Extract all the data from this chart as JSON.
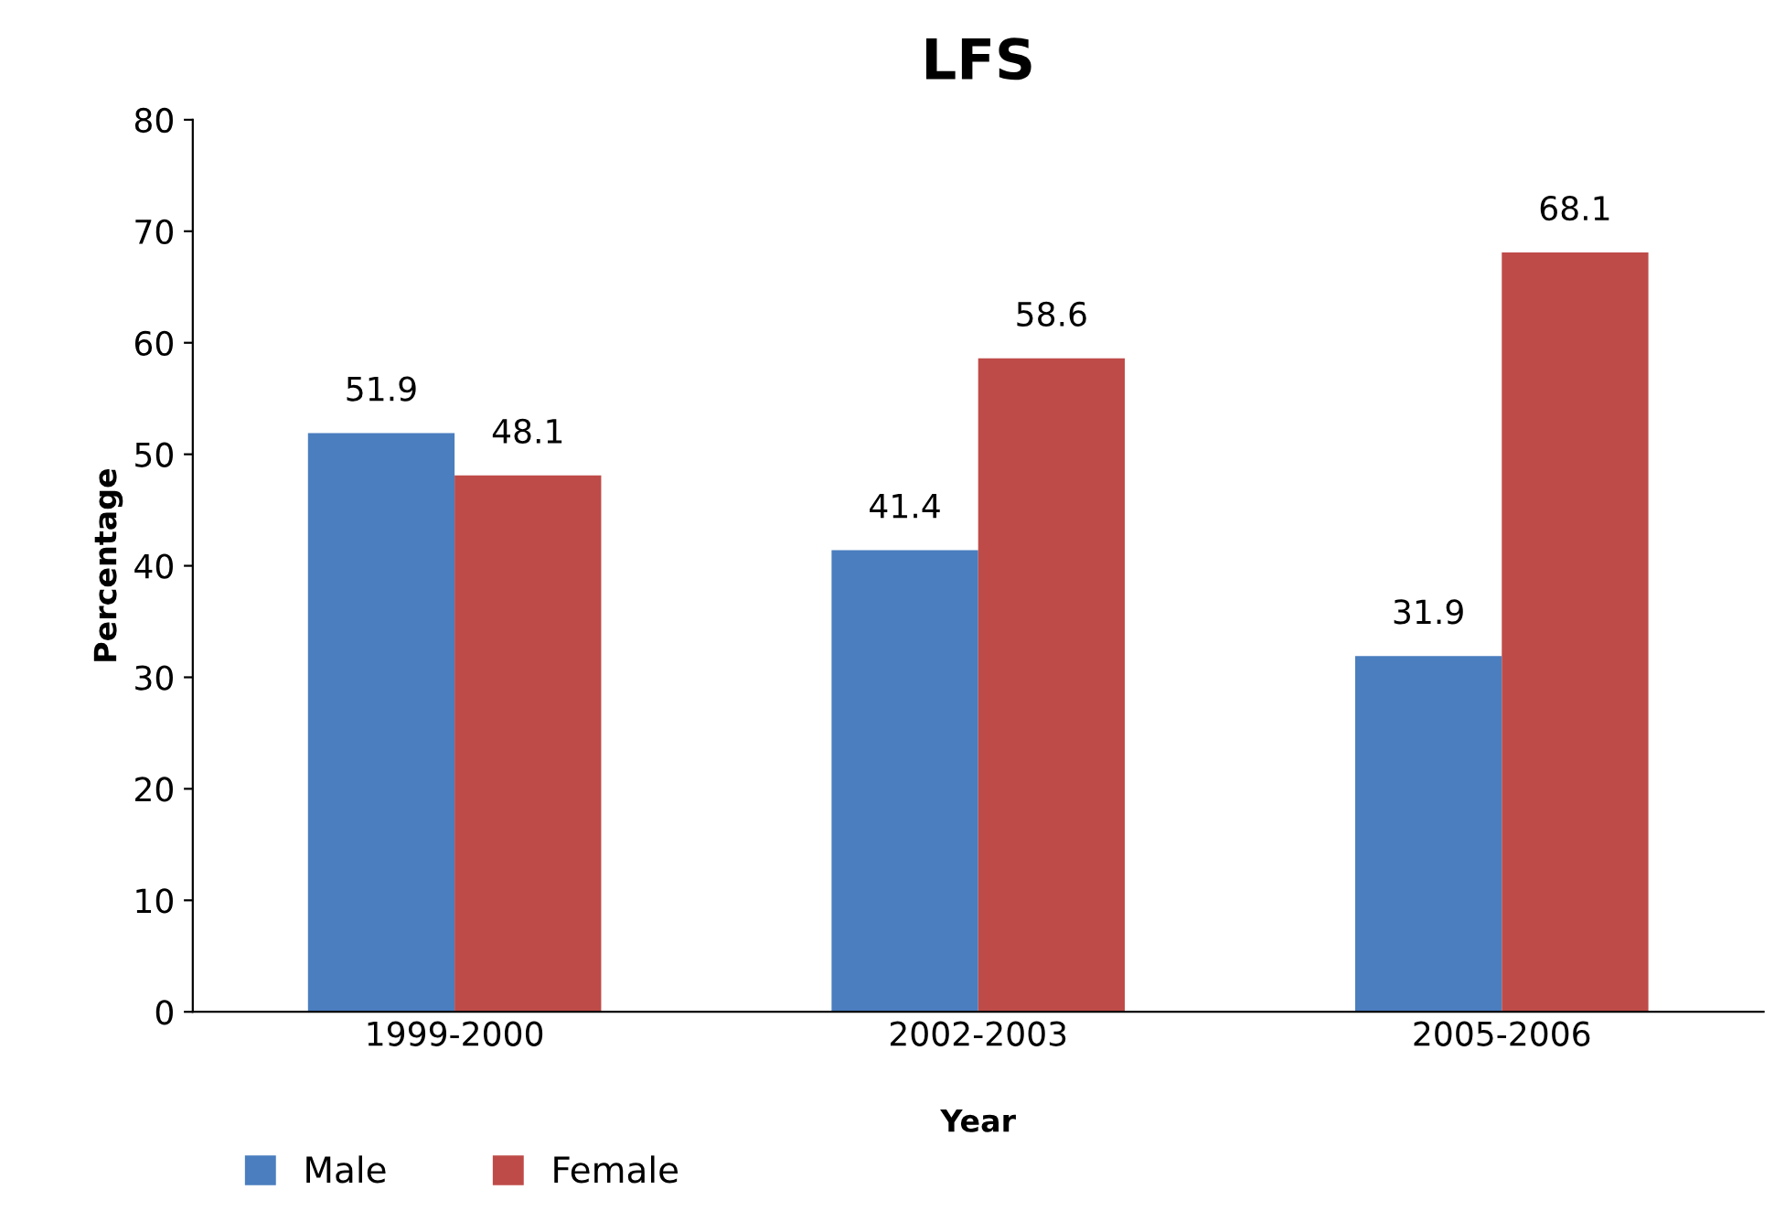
{
  "chart_data": {
    "type": "bar",
    "title": "LFS",
    "xlabel": "Year",
    "ylabel": "Percentage",
    "categories": [
      "1999-2000",
      "2002-2003",
      "2005-2006"
    ],
    "series": [
      {
        "name": "Male",
        "color": "#4a7ebf",
        "values": [
          51.9,
          41.4,
          31.9
        ]
      },
      {
        "name": "Female",
        "color": "#be4b48",
        "values": [
          48.1,
          58.6,
          68.1
        ]
      }
    ],
    "ylim": [
      0,
      80
    ],
    "yticks": [
      0,
      10,
      20,
      30,
      40,
      50,
      60,
      70,
      80
    ],
    "data_labels": true,
    "grid": false,
    "legend": "bottom left"
  }
}
